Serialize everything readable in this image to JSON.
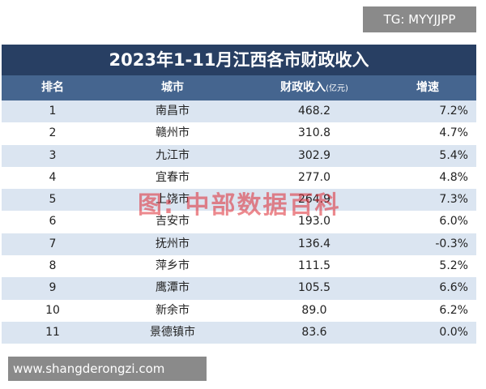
{
  "badge": "TG: MYYJJPP",
  "table": {
    "title": "2023年1-11月江西各市财政收入",
    "headers": [
      "排名",
      "城市",
      "财政收入",
      "增速"
    ],
    "revenue_unit": "(亿元)",
    "rows": [
      [
        "1",
        "南昌市",
        "468.2",
        "7.2%"
      ],
      [
        "2",
        "赣州市",
        "310.8",
        "4.7%"
      ],
      [
        "3",
        "九江市",
        "302.9",
        "5.4%"
      ],
      [
        "4",
        "宜春市",
        "277.0",
        "4.8%"
      ],
      [
        "5",
        "上饶市",
        "264.9",
        "7.3%"
      ],
      [
        "6",
        "吉安市",
        "193.0",
        "6.0%"
      ],
      [
        "7",
        "抚州市",
        "136.4",
        "-0.3%"
      ],
      [
        "8",
        "萍乡市",
        "111.5",
        "5.2%"
      ],
      [
        "9",
        "鹰潭市",
        "105.5",
        "6.6%"
      ],
      [
        "10",
        "新余市",
        "89.0",
        "6.2%"
      ],
      [
        "11",
        "景德镇市",
        "83.6",
        "0.0%"
      ]
    ]
  },
  "watermark": "图: 中部数据百科",
  "footer_url": "www.shangderongzi.com"
}
